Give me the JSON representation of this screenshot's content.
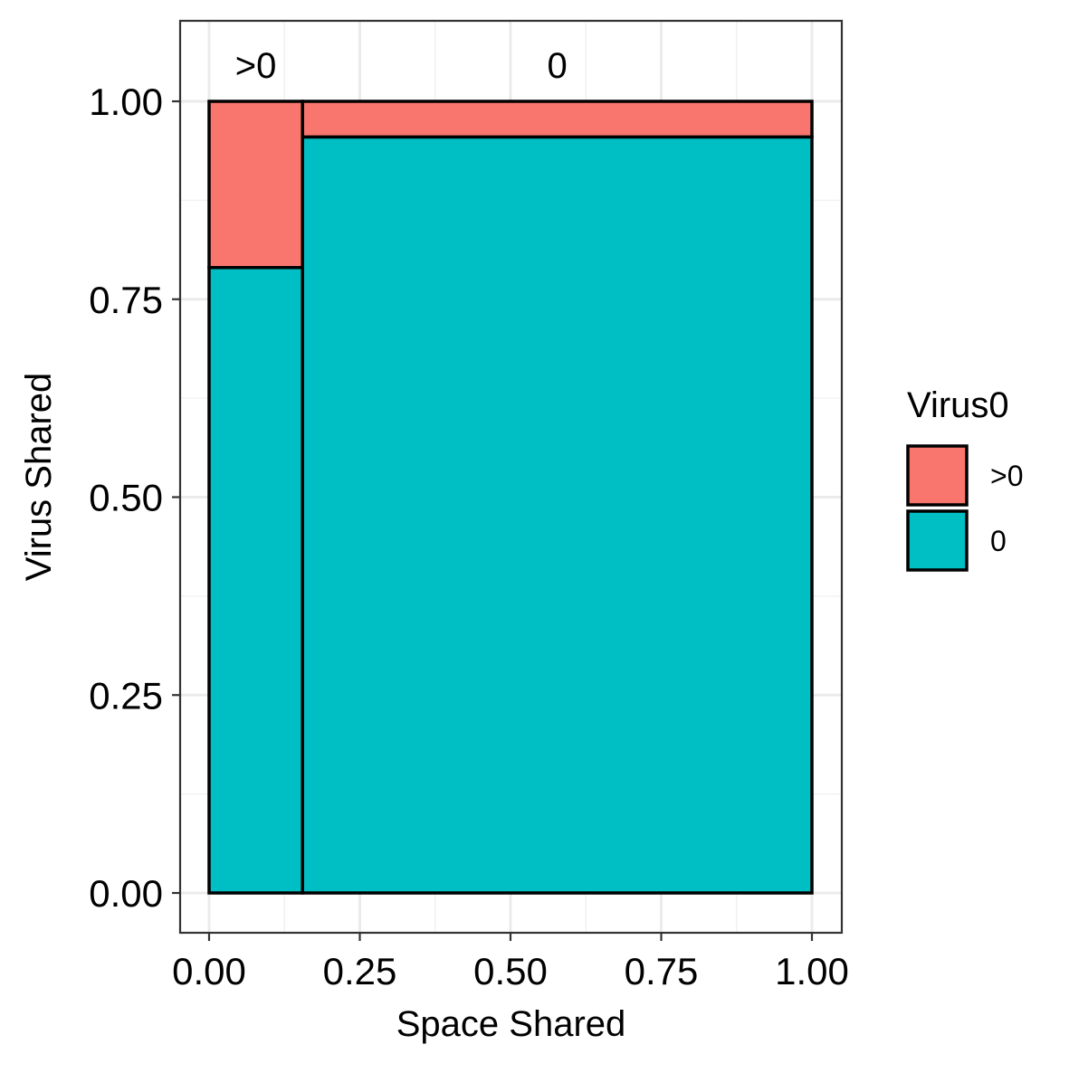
{
  "chart_data": {
    "type": "mosaic",
    "xlabel": "Space Shared",
    "ylabel": "Virus Shared",
    "xlim": [
      0,
      1
    ],
    "ylim": [
      0,
      1
    ],
    "x_ticks": [
      "0.00",
      "0.25",
      "0.50",
      "0.75",
      "1.00"
    ],
    "y_ticks": [
      "0.00",
      "0.25",
      "0.50",
      "0.75",
      "1.00"
    ],
    "grid": true,
    "columns": [
      {
        "label": ">0",
        "x_start": 0.0,
        "x_end": 0.155,
        "segments": [
          {
            "fill": "0",
            "y_start": 0.0,
            "y_end": 0.79
          },
          {
            "fill": ">0",
            "y_start": 0.79,
            "y_end": 1.0
          }
        ]
      },
      {
        "label": "0",
        "x_start": 0.155,
        "x_end": 1.0,
        "segments": [
          {
            "fill": "0",
            "y_start": 0.0,
            "y_end": 0.955
          },
          {
            "fill": ">0",
            "y_start": 0.955,
            "y_end": 1.0
          }
        ]
      }
    ],
    "legend": {
      "title": "Virus0",
      "position": "right",
      "entries": [
        {
          "label": ">0",
          "color": "#F8766D"
        },
        {
          "label": "0",
          "color": "#00BFC4"
        }
      ]
    }
  }
}
